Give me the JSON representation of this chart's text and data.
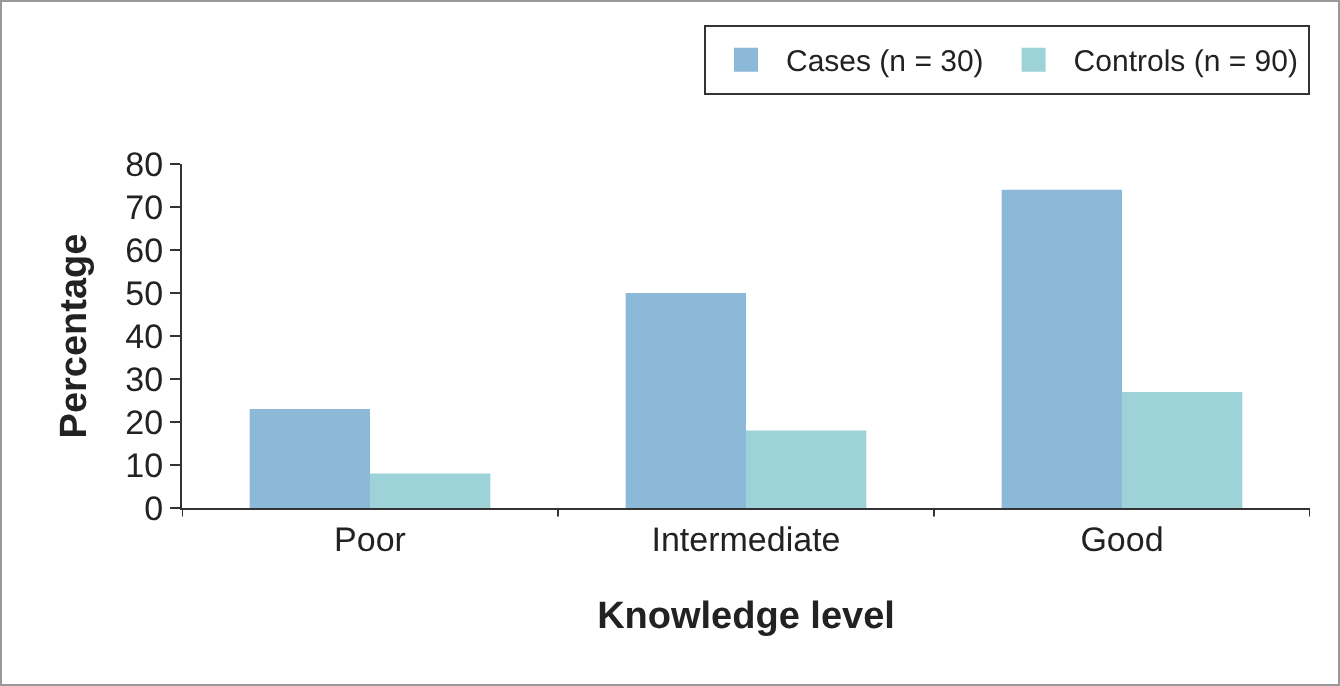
{
  "chart_data": {
    "type": "bar",
    "xlabel": "Knowledge level",
    "ylabel": "Percentage",
    "categories": [
      "Poor",
      "Intermediate",
      "Good"
    ],
    "series": [
      {
        "name": "Cases (n = 30)",
        "color": "#8cb9d8",
        "values": [
          23,
          50,
          74
        ]
      },
      {
        "name": "Controls (n = 90)",
        "color": "#9dd3d8",
        "values": [
          8,
          18,
          27
        ]
      }
    ],
    "ylim": [
      0,
      80
    ],
    "yticks": [
      0,
      10,
      20,
      30,
      40,
      50,
      60,
      70,
      80
    ],
    "grid": false,
    "legend": "top right"
  }
}
